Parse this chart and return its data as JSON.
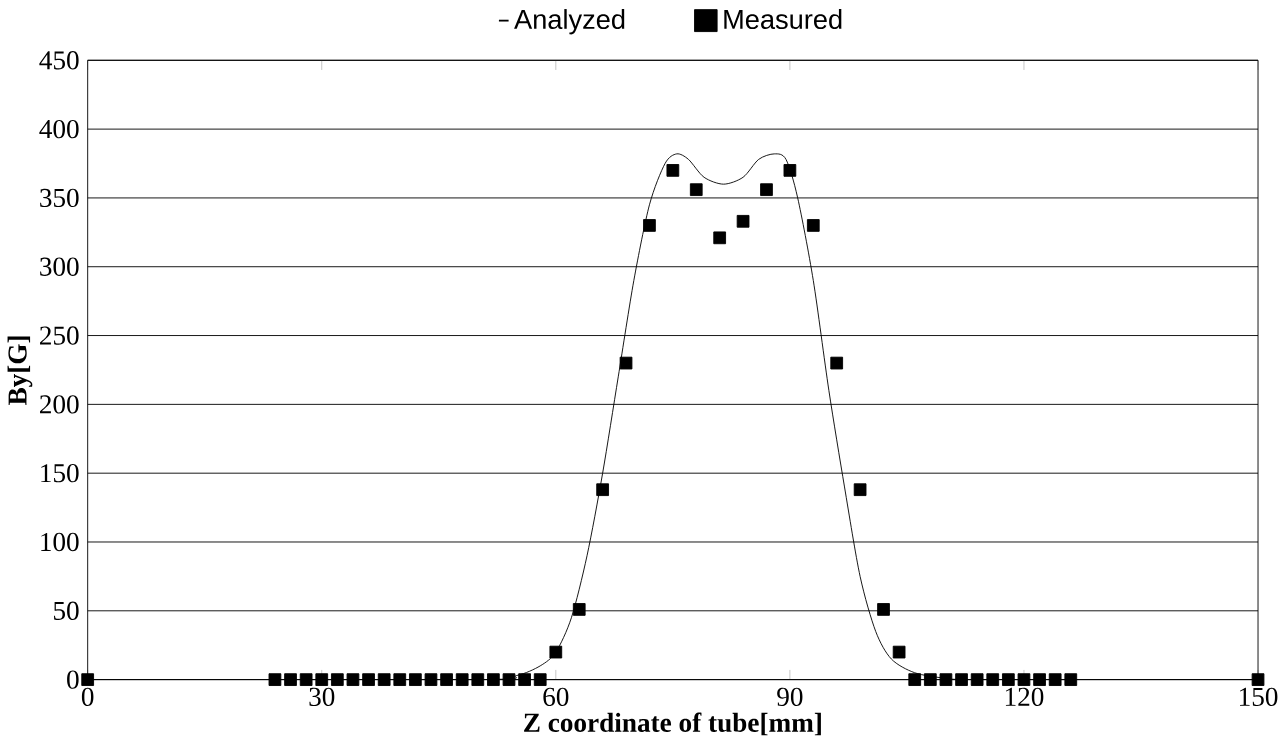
{
  "chart_data": {
    "type": "scatter",
    "xlabel": "Z coordinate of tube[mm]",
    "ylabel": "By[G]",
    "xlim": [
      0,
      150
    ],
    "ylim": [
      0,
      450
    ],
    "xticks": [
      0,
      30,
      60,
      90,
      120,
      150
    ],
    "yticks": [
      0,
      50,
      100,
      150,
      200,
      250,
      300,
      350,
      400,
      450
    ],
    "grid": "y",
    "legend": "top",
    "series": [
      {
        "name": "Analyzed",
        "type": "line",
        "color": "#000000",
        "marker": "none",
        "line_style": "solid",
        "x": [
          0,
          50,
          55,
          58,
          60,
          62,
          64,
          66,
          68,
          70,
          72,
          74,
          75.5,
          77,
          79,
          81.5,
          84,
          86,
          88,
          89.5,
          91,
          93,
          95,
          97,
          99,
          101,
          103,
          106,
          110,
          115,
          150
        ],
        "values": [
          0,
          0,
          3,
          10,
          20,
          45,
          90,
          150,
          220,
          290,
          345,
          375,
          382,
          378,
          365,
          360,
          365,
          378,
          382,
          378,
          350,
          290,
          210,
          140,
          75,
          35,
          15,
          5,
          1,
          0,
          0
        ]
      },
      {
        "name": "Measured",
        "color": "#000000",
        "marker": "square",
        "x": [
          0,
          24,
          26,
          28,
          30,
          32,
          34,
          36,
          38,
          40,
          42,
          44,
          46,
          48,
          50,
          52,
          54,
          56,
          58,
          60,
          63,
          66,
          69,
          72,
          75,
          78,
          81,
          84,
          87,
          90,
          93,
          96,
          99,
          102,
          104,
          106,
          108,
          110,
          112,
          114,
          116,
          118,
          120,
          122,
          124,
          126,
          150
        ],
        "values": [
          0,
          0,
          0,
          0,
          0,
          0,
          0,
          0,
          0,
          0,
          0,
          0,
          0,
          0,
          0,
          0,
          0,
          0,
          0,
          20,
          51,
          138,
          230,
          330,
          370,
          356,
          321,
          333,
          356,
          370,
          330,
          230,
          138,
          51,
          20,
          0,
          0,
          0,
          0,
          0,
          0,
          0,
          0,
          0,
          0,
          0,
          0
        ]
      }
    ]
  }
}
